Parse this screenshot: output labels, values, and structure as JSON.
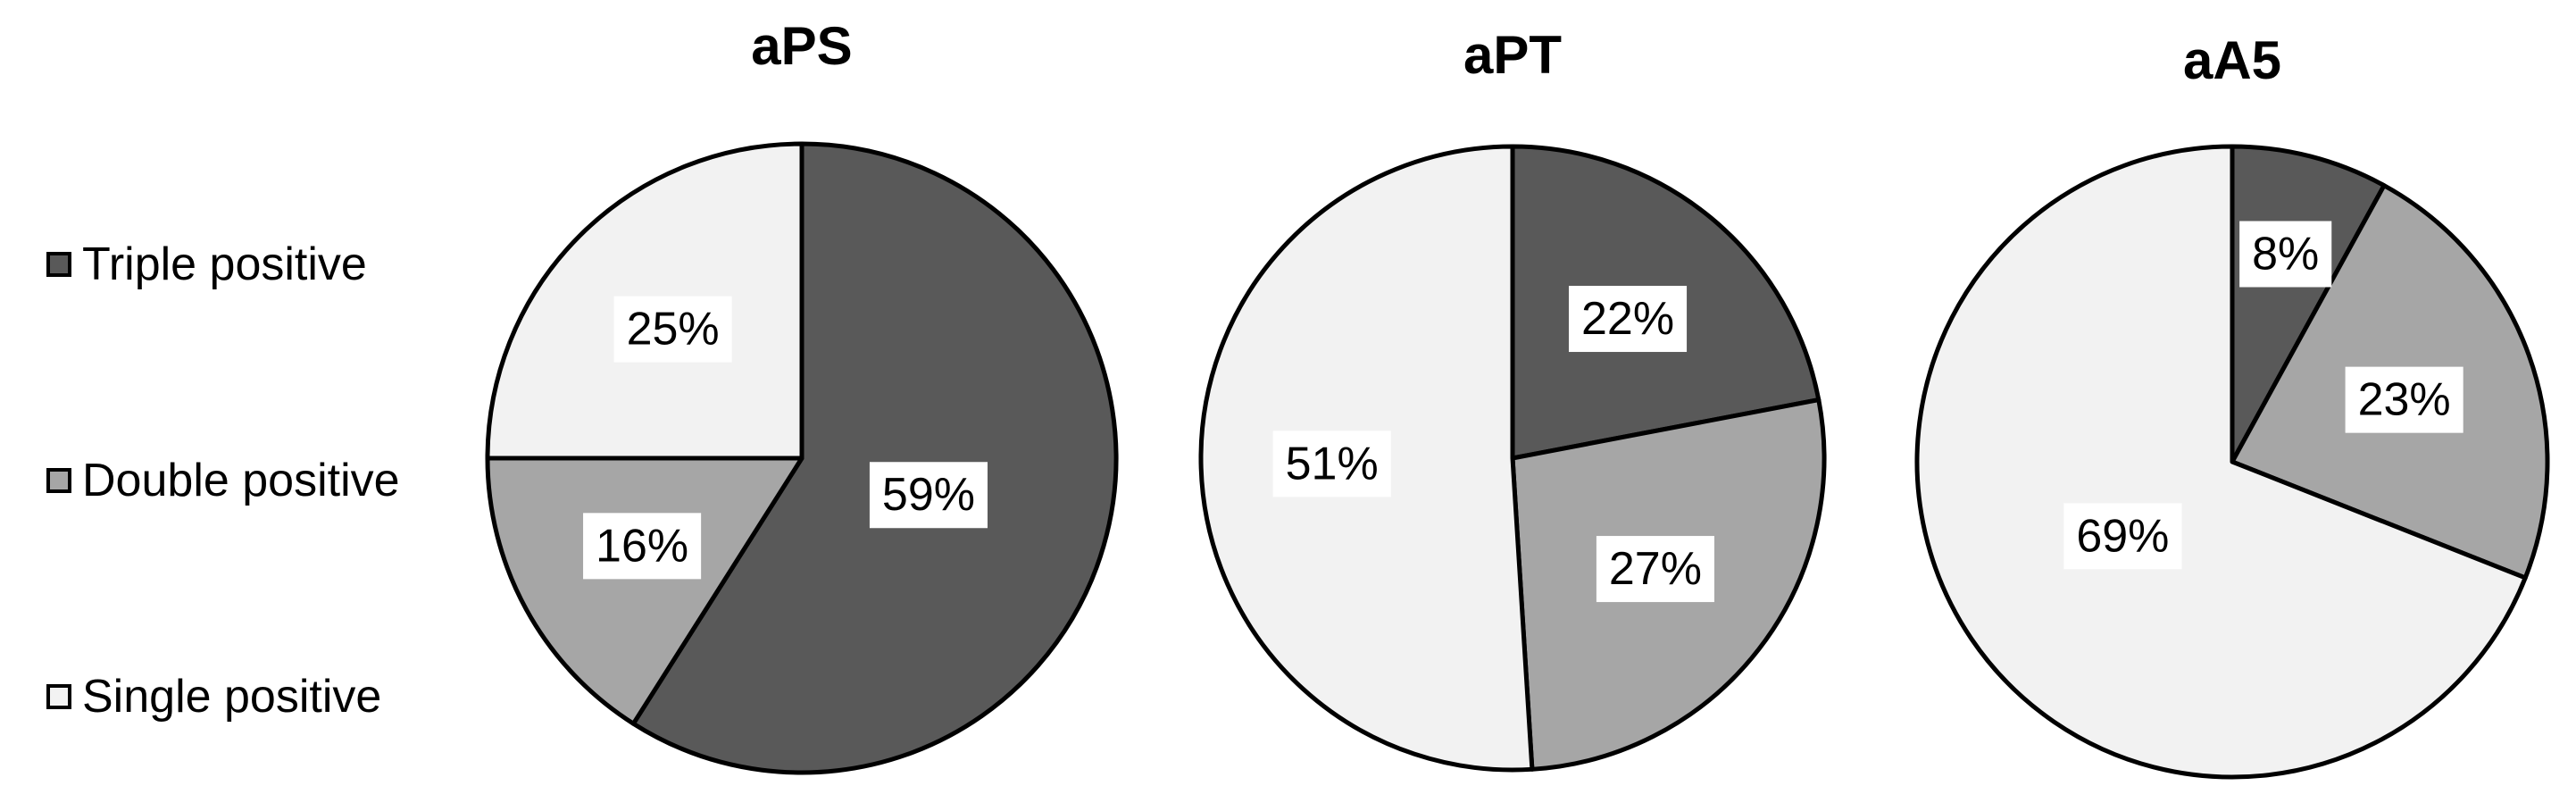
{
  "legend": {
    "items": [
      {
        "label": "Triple positive",
        "color": "#595959"
      },
      {
        "label": "Double positive",
        "color": "#a6a6a6"
      },
      {
        "label": "Single positive",
        "color": "#f2f2f2"
      }
    ]
  },
  "chart_data": [
    {
      "type": "pie",
      "title": "aPS",
      "labels": [
        "Triple positive",
        "Double positive",
        "Single positive"
      ],
      "values": [
        59,
        16,
        25
      ],
      "data_labels": [
        "59%",
        "16%",
        "25%"
      ],
      "colors": [
        "#595959",
        "#a6a6a6",
        "#f2f2f2"
      ]
    },
    {
      "type": "pie",
      "title": "aPT",
      "labels": [
        "Triple positive",
        "Double positive",
        "Single positive"
      ],
      "values": [
        22,
        27,
        51
      ],
      "data_labels": [
        "22%",
        "27%",
        "51%"
      ],
      "colors": [
        "#595959",
        "#a6a6a6",
        "#f2f2f2"
      ]
    },
    {
      "type": "pie",
      "title": "aA5",
      "labels": [
        "Triple positive",
        "Double positive",
        "Single positive"
      ],
      "values": [
        8,
        23,
        69
      ],
      "data_labels": [
        "8%",
        "23%",
        "69%"
      ],
      "colors": [
        "#595959",
        "#a6a6a6",
        "#f2f2f2"
      ]
    }
  ]
}
